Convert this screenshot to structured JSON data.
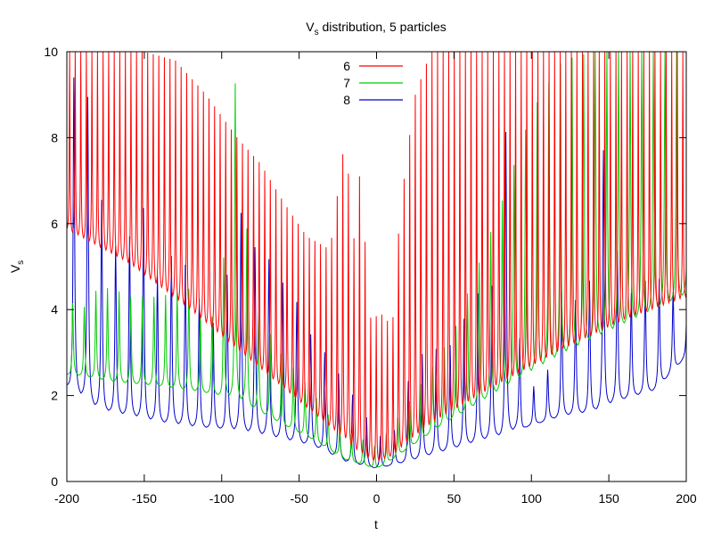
{
  "chart_data": {
    "type": "line",
    "title": "Vs distribution, 5 particles",
    "title_main": "V",
    "title_sub": "s",
    "title_rest": " distribution, 5 particles",
    "xlabel": "t",
    "ylabel_main": "V",
    "ylabel_sub": "s",
    "xlim": [
      -200,
      200
    ],
    "ylim": [
      0,
      10
    ],
    "xticks": [
      "-200",
      "-150",
      "-100",
      "-50",
      "0",
      "50",
      "100",
      "150",
      "200"
    ],
    "yticks": [
      "0",
      "2",
      "4",
      "6",
      "8",
      "10"
    ],
    "grid": false,
    "legend_position": "top-center",
    "series": [
      {
        "name": "6",
        "color": "#ff0000",
        "baseline": [
          [
            -200,
            5.8
          ],
          [
            -160,
            5.0
          ],
          [
            -120,
            3.9
          ],
          [
            -90,
            3.0
          ],
          [
            -60,
            2.1
          ],
          [
            -30,
            1.2
          ],
          [
            -10,
            0.55
          ],
          [
            0,
            0.4
          ],
          [
            10,
            0.55
          ],
          [
            40,
            1.3
          ],
          [
            80,
            2.15
          ],
          [
            120,
            2.95
          ],
          [
            160,
            3.65
          ],
          [
            200,
            4.2
          ]
        ],
        "spike_spacing": 3.6,
        "peak_samples": [
          [
            -195,
            10
          ],
          [
            -175,
            10
          ],
          [
            -150,
            10
          ],
          [
            -130,
            9.8
          ],
          [
            -110,
            9.0
          ],
          [
            -90,
            8.0
          ],
          [
            -75,
            7.4
          ],
          [
            -60,
            6.5
          ],
          [
            -45,
            5.7
          ],
          [
            -30,
            5.4
          ],
          [
            -20,
            8.1
          ],
          [
            -15,
            5.5
          ],
          [
            -10,
            7.5
          ],
          [
            -5,
            3.8
          ],
          [
            5,
            3.9
          ],
          [
            10,
            3.5
          ],
          [
            15,
            6.2
          ],
          [
            20,
            7.7
          ],
          [
            25,
            9.0
          ],
          [
            35,
            10
          ],
          [
            50,
            10
          ],
          [
            100,
            10
          ],
          [
            200,
            10
          ]
        ]
      },
      {
        "name": "7",
        "color": "#00cc00",
        "baseline": [
          [
            -200,
            2.5
          ],
          [
            -170,
            2.3
          ],
          [
            -140,
            2.2
          ],
          [
            -110,
            2.05
          ],
          [
            -90,
            1.9
          ],
          [
            -60,
            1.3
          ],
          [
            -40,
            0.95
          ],
          [
            -20,
            0.5
          ],
          [
            0,
            0.3
          ],
          [
            10,
            0.5
          ],
          [
            40,
            1.25
          ],
          [
            80,
            2.1
          ],
          [
            120,
            2.9
          ],
          [
            160,
            3.6
          ],
          [
            200,
            4.3
          ]
        ],
        "spike_spacing": 7.5,
        "peak_samples": [
          [
            -200,
            2.5
          ],
          [
            -195,
            4.7
          ],
          [
            -190,
            4.0
          ],
          [
            -180,
            4.5
          ],
          [
            -170,
            4.5
          ],
          [
            -160,
            4.3
          ],
          [
            -150,
            4.3
          ],
          [
            -140,
            4.3
          ],
          [
            -120,
            4.5
          ],
          [
            -110,
            3.5
          ],
          [
            -100,
            4.4
          ],
          [
            -92,
            9.6
          ],
          [
            -80,
            4.2
          ],
          [
            -70,
            3.5
          ],
          [
            -60,
            2.9
          ],
          [
            -50,
            2.5
          ],
          [
            -40,
            2.0
          ],
          [
            -30,
            1.5
          ],
          [
            -20,
            1.2
          ],
          [
            -10,
            1.0
          ],
          [
            0,
            0.8
          ],
          [
            10,
            1.3
          ],
          [
            20,
            1.8
          ],
          [
            35,
            2.6
          ],
          [
            50,
            3.5
          ],
          [
            60,
            4.5
          ],
          [
            80,
            6.4
          ],
          [
            100,
            8.6
          ],
          [
            120,
            9.8
          ],
          [
            140,
            10
          ],
          [
            200,
            10
          ]
        ]
      },
      {
        "name": "8",
        "color": "#0000cc",
        "baseline": [
          [
            -200,
            2.2
          ],
          [
            -180,
            1.65
          ],
          [
            -160,
            1.5
          ],
          [
            -140,
            1.35
          ],
          [
            -120,
            1.25
          ],
          [
            -100,
            1.2
          ],
          [
            -80,
            1.1
          ],
          [
            -60,
            0.95
          ],
          [
            -40,
            0.8
          ],
          [
            -20,
            0.45
          ],
          [
            0,
            0.3
          ],
          [
            20,
            0.45
          ],
          [
            40,
            0.65
          ],
          [
            60,
            0.85
          ],
          [
            80,
            1.05
          ],
          [
            100,
            1.3
          ],
          [
            120,
            1.5
          ],
          [
            140,
            1.6
          ],
          [
            160,
            1.9
          ],
          [
            180,
            2.1
          ],
          [
            200,
            2.9
          ]
        ],
        "spike_spacing": 9.0,
        "peak_samples": [
          [
            -200,
            5.8
          ],
          [
            -195,
            9.8
          ],
          [
            -185,
            8.8
          ],
          [
            -175,
            5.8
          ],
          [
            -165,
            5.3
          ],
          [
            -150,
            6.4
          ],
          [
            -140,
            4.5
          ],
          [
            -130,
            5.5
          ],
          [
            -120,
            4.8
          ],
          [
            -108,
            3.6
          ],
          [
            -100,
            3.9
          ],
          [
            -90,
            6.5
          ],
          [
            -80,
            5.5
          ],
          [
            -70,
            5.2
          ],
          [
            -60,
            4.6
          ],
          [
            -50,
            4.1
          ],
          [
            -40,
            3.2
          ],
          [
            -30,
            2.9
          ],
          [
            -20,
            2.2
          ],
          [
            -10,
            1.8
          ],
          [
            -2,
            1.1
          ],
          [
            10,
            1.0
          ],
          [
            20,
            2.3
          ],
          [
            30,
            3.0
          ],
          [
            40,
            3.1
          ],
          [
            50,
            3.2
          ],
          [
            60,
            4.1
          ],
          [
            70,
            4.6
          ],
          [
            80,
            4.5
          ],
          [
            83,
            8.4
          ],
          [
            95,
            2.0
          ],
          [
            110,
            2.5
          ],
          [
            120,
            4.5
          ],
          [
            128,
            4.2
          ],
          [
            140,
            4.8
          ],
          [
            145,
            8.1
          ],
          [
            160,
            4.2
          ],
          [
            170,
            4.6
          ],
          [
            180,
            4.8
          ],
          [
            195,
            4.3
          ]
        ]
      }
    ]
  }
}
